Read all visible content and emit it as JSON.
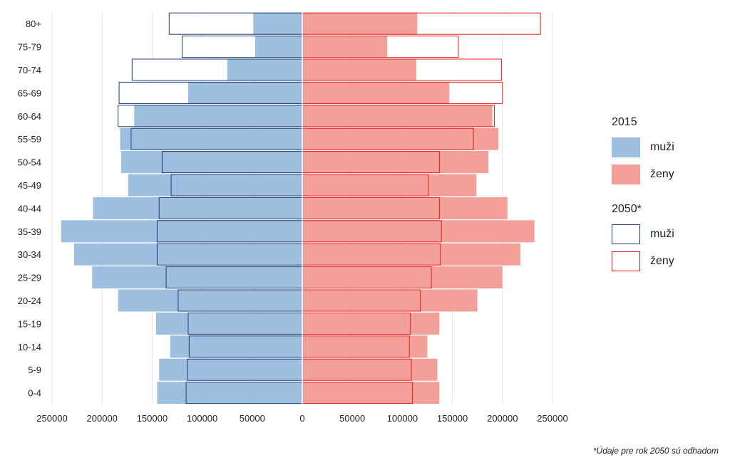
{
  "chart_data": {
    "type": "bar",
    "orientation": "horizontal",
    "categories": [
      "0-4",
      "5-9",
      "10-14",
      "15-19",
      "20-24",
      "25-29",
      "30-34",
      "35-39",
      "40-44",
      "45-49",
      "50-54",
      "55-59",
      "60-64",
      "65-69",
      "70-74",
      "75-79",
      "80+"
    ],
    "x_ticks": [
      "250000",
      "200000",
      "150000",
      "100000",
      "50000",
      "0",
      "50000",
      "100000",
      "150000",
      "200000",
      "250000"
    ],
    "xlim": [
      -250000,
      250000
    ],
    "grid": true,
    "legend_position": "right",
    "legend": {
      "group1_title": "2015",
      "group2_title": "2050*",
      "male_label": "muži",
      "female_label": "ženy"
    },
    "series": [
      {
        "group": "2015",
        "sex": "male",
        "name": "muži",
        "values": [
          145000,
          143000,
          132000,
          146000,
          184000,
          210000,
          228000,
          241000,
          209000,
          174000,
          181000,
          182000,
          168000,
          114000,
          75000,
          47000,
          49000
        ]
      },
      {
        "group": "2015",
        "sex": "female",
        "name": "ženy",
        "values": [
          137000,
          135000,
          125000,
          137000,
          175000,
          200000,
          218000,
          232000,
          205000,
          174000,
          186000,
          196000,
          190000,
          147000,
          114000,
          85000,
          115000
        ]
      },
      {
        "group": "2050*",
        "sex": "male",
        "name": "muži",
        "values": [
          116000,
          115000,
          113000,
          114000,
          124000,
          136000,
          145000,
          145000,
          143000,
          131000,
          140000,
          171000,
          184000,
          183000,
          170000,
          120000,
          133000
        ]
      },
      {
        "group": "2050*",
        "sex": "female",
        "name": "ženy",
        "values": [
          110000,
          109000,
          107000,
          108000,
          118000,
          129000,
          138000,
          139000,
          137000,
          126000,
          137000,
          171000,
          192000,
          200000,
          199000,
          156000,
          238000
        ]
      }
    ],
    "colors": {
      "male_2015": "#9dbfe0",
      "female_2015": "#f4a09a",
      "male_2050": "#1f3f7a",
      "female_2050": "#e02020",
      "grid": "#e6e6e6"
    },
    "footnote": "*Údaje pre rok 2050 sú odhadom"
  }
}
